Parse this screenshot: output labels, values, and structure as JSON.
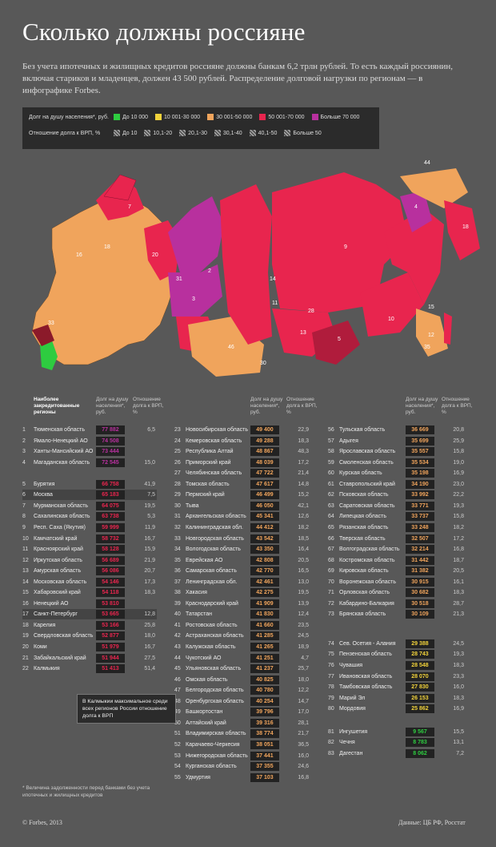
{
  "title": "Сколько должны россияне",
  "intro": "Без учета ипотечных и жилищных кредитов россияне должны банкам 6,2 трлн рублей. То есть каждый россиянин, включая стариков и младенцев, должен 43 500 рублей. Распределение долговой нагрузки по регионам — в инфографике Forbes.",
  "legend": {
    "debt_label": "Долг на душу населения*, руб.",
    "debt_items": [
      {
        "label": "До 10 000",
        "color": "#2ecc40"
      },
      {
        "label": "10 001-30 000",
        "color": "#f2d33b"
      },
      {
        "label": "30 001-50 000",
        "color": "#f0a45c"
      },
      {
        "label": "50 001-70 000",
        "color": "#e8254e"
      },
      {
        "label": "Больше 70 000",
        "color": "#b8309e"
      }
    ],
    "ratio_label": "Отношение долга к ВРП, %",
    "ratio_items": [
      "До 10",
      "10,1-20",
      "20,1-30",
      "30,1-40",
      "40,1-50",
      "Больше 50"
    ]
  },
  "headers": {
    "regions": "Наиболее закредитованные регионы",
    "debt": "Долг на душу населения*, руб.",
    "ratio": "Отношение долга к ВРП, %"
  },
  "chart_data": {
    "type": "table",
    "columns": [
      "№",
      "Регион",
      "Долг на душу населения*, руб.",
      "Отношение долга к ВРП, %"
    ],
    "rows": [
      [
        "1",
        "Тюменская область",
        "77 882",
        "6,5"
      ],
      [
        "2",
        "Ямало-Ненецкий АО",
        "74 508",
        ""
      ],
      [
        "3",
        "Ханты-Мансийский АО",
        "73 444",
        ""
      ],
      [
        "4",
        "Магаданская область",
        "72 545",
        "15,0"
      ],
      [
        "5",
        "Бурятия",
        "66 758",
        "41,9"
      ],
      [
        "6",
        "Москва",
        "65 183",
        "7,5"
      ],
      [
        "7",
        "Мурманская область",
        "64 075",
        "19,5"
      ],
      [
        "8",
        "Сахалинская область",
        "63 738",
        "5,3"
      ],
      [
        "9",
        "Респ. Саха (Якутия)",
        "59 999",
        "11,9"
      ],
      [
        "10",
        "Камчатский край",
        "58 732",
        "16,7"
      ],
      [
        "11",
        "Красноярский край",
        "58 128",
        "15,9"
      ],
      [
        "12",
        "Иркутская область",
        "56 689",
        "21,9"
      ],
      [
        "13",
        "Амурская область",
        "56 086",
        "20,7"
      ],
      [
        "14",
        "Московская область",
        "54 146",
        "17,3"
      ],
      [
        "15",
        "Хабаровский край",
        "54 118",
        "18,3"
      ],
      [
        "16",
        "Ненецкий АО",
        "53 810",
        ""
      ],
      [
        "17",
        "Санкт-Петербург",
        "53 665",
        "12,8"
      ],
      [
        "18",
        "Карелия",
        "53 166",
        "25,8"
      ],
      [
        "19",
        "Свердловская область",
        "52 877",
        "18,0"
      ],
      [
        "20",
        "Коми",
        "51 979",
        "16,7"
      ],
      [
        "21",
        "Забайкальский край",
        "51 944",
        "27,5"
      ],
      [
        "22",
        "Калмыкия",
        "51 413",
        "51,4"
      ],
      [
        "23",
        "Новосибирская область",
        "49 400",
        "22,9"
      ],
      [
        "24",
        "Кемеровская область",
        "49 288",
        "18,3"
      ],
      [
        "25",
        "Республика Алтай",
        "48 867",
        "48,3"
      ],
      [
        "26",
        "Приморский край",
        "48 039",
        "17,2"
      ],
      [
        "27",
        "Челябинская область",
        "47 722",
        "21,4"
      ],
      [
        "28",
        "Томская область",
        "47 617",
        "14,8"
      ],
      [
        "29",
        "Пермский край",
        "46 499",
        "15,2"
      ],
      [
        "30",
        "Тыва",
        "46 050",
        "42,1"
      ],
      [
        "31",
        "Архангельская область",
        "45 341",
        "12,6"
      ],
      [
        "32",
        "Калининградская обл.",
        "44 412",
        "18,2"
      ],
      [
        "33",
        "Новгородская область",
        "43 542",
        "18,5"
      ],
      [
        "34",
        "Вологодская область",
        "43 350",
        "16,4"
      ],
      [
        "35",
        "Еврейская АО",
        "42 808",
        "20,5"
      ],
      [
        "36",
        "Самарская область",
        "42 770",
        "16,5"
      ],
      [
        "37",
        "Ленинградская обл.",
        "42 461",
        "13,0"
      ],
      [
        "38",
        "Хакасия",
        "42 275",
        "19,5"
      ],
      [
        "39",
        "Краснодарский край",
        "41 909",
        "13,9"
      ],
      [
        "40",
        "Татарстан",
        "41 830",
        "12,4"
      ],
      [
        "41",
        "Ростовская область",
        "41 660",
        "23,5"
      ],
      [
        "42",
        "Астраханская область",
        "41 285",
        "24,5"
      ],
      [
        "43",
        "Калужская область",
        "41 265",
        "18,9"
      ],
      [
        "44",
        "Чукотский АО",
        "41 251",
        "4,7"
      ],
      [
        "45",
        "Ульяновская область",
        "41 237",
        "25,7"
      ],
      [
        "46",
        "Омская область",
        "40 825",
        "18,0"
      ],
      [
        "47",
        "Белгородская область",
        "40 780",
        "12,2"
      ],
      [
        "48",
        "Оренбургская область",
        "40 254",
        "14,7"
      ],
      [
        "49",
        "Башкортостан",
        "39 796",
        "17,0"
      ],
      [
        "50",
        "Алтайский край",
        "39 316",
        "28,1"
      ],
      [
        "51",
        "Владимирская область",
        "38 774",
        "21,7"
      ],
      [
        "52",
        "Карачаево-Черкесия",
        "38 051",
        "36,5"
      ],
      [
        "53",
        "Нижегородская область",
        "37 441",
        "16,0"
      ],
      [
        "54",
        "Курганская область",
        "37 355",
        "24,6"
      ],
      [
        "55",
        "Удмуртия",
        "37 103",
        "16,8"
      ],
      [
        "56",
        "Тульская область",
        "36 669",
        "20,8"
      ],
      [
        "57",
        "Адыгея",
        "35 699",
        "25,9"
      ],
      [
        "58",
        "Ярославская область",
        "35 557",
        "15,8"
      ],
      [
        "59",
        "Смоленская область",
        "35 534",
        "19,0"
      ],
      [
        "60",
        "Курская область",
        "35 198",
        "16,9"
      ],
      [
        "61",
        "Ставропольский край",
        "34 190",
        "23,0"
      ],
      [
        "62",
        "Псковская область",
        "33 992",
        "22,2"
      ],
      [
        "63",
        "Саратовская область",
        "33 771",
        "19,3"
      ],
      [
        "64",
        "Липецкая область",
        "33 737",
        "15,8"
      ],
      [
        "65",
        "Рязанская область",
        "33 248",
        "18,2"
      ],
      [
        "66",
        "Тверская область",
        "32 507",
        "17,2"
      ],
      [
        "67",
        "Волгоградская область",
        "32 214",
        "16,8"
      ],
      [
        "68",
        "Костромская область",
        "31 442",
        "18,7"
      ],
      [
        "69",
        "Кировская область",
        "31 382",
        "20,5"
      ],
      [
        "70",
        "Воронежская область",
        "30 915",
        "16,1"
      ],
      [
        "71",
        "Орловская область",
        "30 682",
        "18,3"
      ],
      [
        "72",
        "Кабардино-Балкария",
        "30 518",
        "28,7"
      ],
      [
        "73",
        "Брянская область",
        "30 109",
        "21,3"
      ],
      [
        "74",
        "Сев. Осетия - Алания",
        "29 388",
        "24,5"
      ],
      [
        "75",
        "Пензенская область",
        "28 743",
        "19,3"
      ],
      [
        "76",
        "Чувашия",
        "28 548",
        "18,3"
      ],
      [
        "77",
        "Ивановская область",
        "28 070",
        "23,3"
      ],
      [
        "78",
        "Тамбовская область",
        "27 830",
        "16,0"
      ],
      [
        "79",
        "Марий Эл",
        "26 153",
        "18,3"
      ],
      [
        "80",
        "Мордовия",
        "25 862",
        "16,9"
      ],
      [
        "81",
        "Ингушетия",
        "9 567",
        "15,5"
      ],
      [
        "82",
        "Чечня",
        "8 783",
        "13,1"
      ],
      [
        "83",
        "Дагестан",
        "8 062",
        "7,2"
      ]
    ]
  },
  "map_labels": [
    "5",
    "9",
    "14",
    "13",
    "15",
    "10",
    "4",
    "18",
    "44",
    "12",
    "2",
    "3",
    "11",
    "28",
    "30",
    "46",
    "20",
    "31",
    "18",
    "7",
    "16",
    "33",
    "35"
  ],
  "note": "В Калмыкии максимальное среди всех регионов России отношение долга к ВРП",
  "footnote": "* Величина задолженности перед банками без учета ипотечных и жилищных кредитов",
  "copyright": "© Forbes, 2013",
  "source": "Данные: ЦБ РФ, Росстат"
}
